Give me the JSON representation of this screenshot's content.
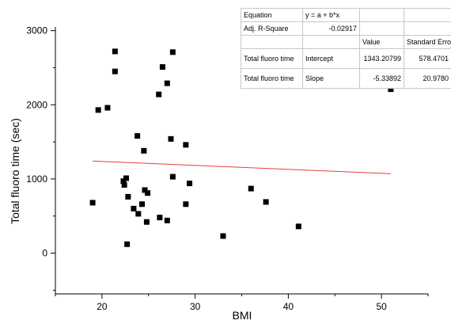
{
  "chart_data": {
    "type": "scatter",
    "xlabel": "BMI",
    "ylabel": "Total fluoro time (sec)",
    "xlim": [
      15,
      55
    ],
    "ylim": [
      -550,
      3050
    ],
    "x_ticks": [
      20,
      30,
      40,
      50
    ],
    "y_ticks": [
      0,
      1000,
      2000,
      3000
    ],
    "grid": false,
    "points": [
      {
        "x": 19.0,
        "y": 680
      },
      {
        "x": 19.6,
        "y": 1930
      },
      {
        "x": 20.6,
        "y": 1960
      },
      {
        "x": 21.4,
        "y": 2720
      },
      {
        "x": 21.4,
        "y": 2450
      },
      {
        "x": 22.3,
        "y": 970
      },
      {
        "x": 22.4,
        "y": 920
      },
      {
        "x": 22.6,
        "y": 1010
      },
      {
        "x": 22.7,
        "y": 120
      },
      {
        "x": 22.8,
        "y": 760
      },
      {
        "x": 23.4,
        "y": 600
      },
      {
        "x": 23.8,
        "y": 1580
      },
      {
        "x": 23.9,
        "y": 530
      },
      {
        "x": 24.3,
        "y": 660
      },
      {
        "x": 24.5,
        "y": 1380
      },
      {
        "x": 24.6,
        "y": 850
      },
      {
        "x": 24.8,
        "y": 420
      },
      {
        "x": 24.9,
        "y": 810
      },
      {
        "x": 26.1,
        "y": 2140
      },
      {
        "x": 26.2,
        "y": 480
      },
      {
        "x": 26.5,
        "y": 2510
      },
      {
        "x": 27.0,
        "y": 2290
      },
      {
        "x": 27.0,
        "y": 440
      },
      {
        "x": 27.4,
        "y": 1540
      },
      {
        "x": 27.6,
        "y": 2710
      },
      {
        "x": 27.6,
        "y": 1030
      },
      {
        "x": 29.0,
        "y": 1460
      },
      {
        "x": 29.0,
        "y": 660
      },
      {
        "x": 29.4,
        "y": 940
      },
      {
        "x": 33.0,
        "y": 230
      },
      {
        "x": 36.0,
        "y": 870
      },
      {
        "x": 37.6,
        "y": 690
      },
      {
        "x": 41.1,
        "y": 360
      },
      {
        "x": 51.0,
        "y": 2210
      }
    ],
    "fit": {
      "intercept": 1343.20799,
      "slope": -5.33892,
      "x_range": [
        19,
        51
      ],
      "color": "#e8413a"
    },
    "point_color": "#000000"
  },
  "fit_table": {
    "rows": [
      {
        "c1": "Equation",
        "c2": "y = a + b*x",
        "c3": "",
        "c4": ""
      },
      {
        "c1": "Adj. R-Square",
        "c2": "-0.02917",
        "c3": "",
        "c4": ""
      },
      {
        "c1": "",
        "c2": "",
        "c3": "Value",
        "c4": "Standard Erro"
      },
      {
        "c1": "Total fluoro time",
        "c2": "Intercept",
        "c3": "1343.20799",
        "c4": "578.4701"
      },
      {
        "c1": "Total fluoro time",
        "c2": "Slope",
        "c3": "-5.33892",
        "c4": "20.9780"
      }
    ]
  }
}
